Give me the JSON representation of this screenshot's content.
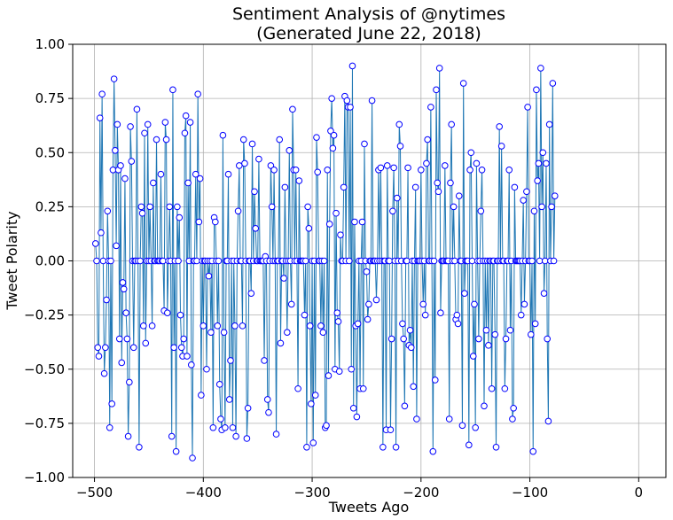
{
  "chart_data": {
    "type": "line",
    "title_lines": [
      "Sentiment Analysis of @nytimes",
      "(Generated June 22, 2018)"
    ],
    "xlabel": "Tweets Ago",
    "ylabel": "Tweet Polarity",
    "xlim": [
      -520,
      25
    ],
    "ylim": [
      -1.0,
      1.0
    ],
    "xticks": [
      -500,
      -400,
      -300,
      -200,
      -100,
      0
    ],
    "xtick_labels": [
      "−500",
      "−400",
      "−300",
      "−200",
      "−100",
      "0"
    ],
    "yticks": [
      -1.0,
      -0.75,
      -0.5,
      -0.25,
      0.0,
      0.25,
      0.5,
      0.75,
      1.0
    ],
    "ytick_labels": [
      "−1.00",
      "−0.75",
      "−0.50",
      "−0.25",
      "0.00",
      "0.25",
      "0.50",
      "0.75",
      "1.00"
    ],
    "grid": true,
    "line_color": "#1f77b4",
    "marker_edge_color": "#0000ff",
    "marker_face_color": "#ffffff",
    "x_start": -499,
    "x_step": 1,
    "values": [
      0.08,
      0.0,
      -0.4,
      -0.44,
      0.66,
      0.13,
      0.77,
      0.0,
      -0.52,
      -0.4,
      -0.18,
      0.23,
      0.0,
      -0.77,
      0.0,
      -0.66,
      0.42,
      0.84,
      0.51,
      0.07,
      0.63,
      0.42,
      -0.36,
      0.44,
      -0.47,
      -0.1,
      -0.13,
      0.38,
      -0.24,
      -0.36,
      -0.81,
      -0.56,
      0.62,
      0.46,
      0.0,
      -0.4,
      0.0,
      0.0,
      0.7,
      0.0,
      -0.86,
      0.0,
      0.25,
      0.22,
      -0.3,
      0.59,
      -0.38,
      0.0,
      0.63,
      0.0,
      0.25,
      0.0,
      -0.3,
      0.36,
      0.0,
      0.0,
      0.56,
      0.0,
      0.0,
      0.0,
      0.4,
      0.0,
      0.0,
      -0.23,
      0.64,
      0.56,
      -0.24,
      0.0,
      0.25,
      0.0,
      -0.81,
      0.79,
      -0.4,
      0.0,
      -0.88,
      0.25,
      0.0,
      0.2,
      -0.25,
      -0.4,
      -0.44,
      -0.36,
      0.59,
      0.67,
      -0.44,
      0.36,
      0.0,
      0.64,
      -0.48,
      -0.91,
      0.0,
      0.0,
      0.4,
      0.0,
      0.77,
      0.18,
      0.38,
      -0.62,
      0.0,
      -0.3,
      0.0,
      0.0,
      -0.5,
      0.0,
      -0.07,
      0.0,
      -0.33,
      0.0,
      -0.77,
      0.2,
      0.18,
      0.0,
      -0.3,
      0.0,
      -0.57,
      -0.73,
      -0.78,
      0.58,
      -0.33,
      -0.77,
      0.0,
      0.0,
      0.4,
      -0.64,
      -0.46,
      0.0,
      -0.77,
      0.0,
      -0.3,
      -0.81,
      0.0,
      0.23,
      0.44,
      0.0,
      0.0,
      -0.3,
      0.56,
      0.45,
      0.0,
      -0.82,
      -0.68,
      0.0,
      0.0,
      -0.15,
      0.54,
      0.0,
      0.32,
      0.15,
      0.0,
      0.0,
      0.47,
      0.0,
      0.0,
      0.0,
      0.0,
      -0.46,
      0.02,
      0.0,
      -0.64,
      -0.7,
      0.0,
      0.44,
      0.25,
      0.0,
      0.42,
      0.0,
      -0.8,
      0.0,
      0.0,
      0.56,
      -0.38,
      0.0,
      0.0,
      -0.08,
      0.34,
      0.0,
      -0.33,
      0.0,
      0.51,
      0.0,
      -0.2,
      0.7,
      0.42,
      0.0,
      0.42,
      0.0,
      -0.59,
      0.37,
      0.0,
      0.0,
      0.0,
      0.0,
      -0.25,
      0.0,
      -0.86,
      0.25,
      0.15,
      -0.3,
      -0.66,
      0.0,
      -0.84,
      0.0,
      -0.62,
      0.57,
      0.41,
      0.0,
      0.0,
      -0.3,
      0.0,
      -0.33,
      0.0,
      -0.77,
      -0.76,
      0.42,
      -0.53,
      0.17,
      0.6,
      0.75,
      0.52,
      0.58,
      -0.5,
      0.22,
      -0.24,
      -0.28,
      -0.51,
      0.12,
      0.0,
      0.0,
      0.34,
      0.76,
      0.0,
      0.74,
      0.71,
      0.0,
      0.71,
      -0.5,
      0.9,
      -0.68,
      0.18,
      -0.3,
      -0.72,
      -0.29,
      0.0,
      -0.59,
      0.0,
      0.18,
      -0.59,
      0.54,
      0.0,
      -0.05,
      -0.27,
      -0.2,
      0.0,
      0.0,
      0.74,
      0.0,
      0.0,
      0.0,
      -0.18,
      0.0,
      0.42,
      0.0,
      0.43,
      0.0,
      -0.86,
      0.0,
      0.0,
      -0.78,
      0.44,
      0.0,
      0.0,
      -0.78,
      -0.36,
      0.23,
      0.43,
      0.0,
      -0.86,
      0.29,
      0.0,
      0.63,
      0.53,
      0.0,
      -0.29,
      -0.36,
      -0.67,
      0.0,
      0.0,
      0.43,
      -0.39,
      -0.32,
      -0.4,
      0.0,
      -0.58,
      0.0,
      0.34,
      -0.73,
      0.0,
      0.0,
      0.0,
      0.42,
      0.0,
      -0.2,
      0.0,
      -0.25,
      0.45,
      0.56,
      0.0,
      0.0,
      0.71,
      0.0,
      -0.88,
      0.0,
      -0.55,
      0.79,
      0.36,
      0.32,
      0.89,
      -0.24,
      0.0,
      0.0,
      0.0,
      0.44,
      0.0,
      0.0,
      0.0,
      -0.73,
      0.36,
      0.63,
      0.0,
      0.25,
      0.0,
      -0.27,
      -0.25,
      -0.29,
      0.3,
      0.0,
      0.0,
      -0.76,
      0.82,
      -0.15,
      0.0,
      0.0,
      0.0,
      -0.85,
      0.42,
      0.5,
      0.0,
      -0.44,
      -0.2,
      -0.77,
      0.45,
      0.0,
      -0.36,
      0.0,
      0.23,
      0.42,
      0.0,
      -0.67,
      0.0,
      -0.32,
      0.0,
      -0.39,
      0.0,
      0.0,
      -0.59,
      0.0,
      0.0,
      -0.34,
      -0.86,
      0.0,
      0.0,
      0.62,
      0.0,
      0.53,
      0.0,
      0.0,
      -0.59,
      -0.36,
      0.0,
      0.0,
      0.42,
      -0.32,
      0.0,
      -0.73,
      -0.68,
      0.34,
      0.0,
      0.0,
      0.0,
      0.0,
      0.0,
      -0.25,
      0.0,
      0.28,
      -0.2,
      0.0,
      0.32,
      0.71,
      0.0,
      0.0,
      -0.34,
      0.0,
      -0.88,
      0.23,
      -0.29,
      0.79,
      0.37,
      0.45,
      0.0,
      0.89,
      0.25,
      0.5,
      -0.15,
      0.0,
      0.45,
      -0.36,
      -0.74,
      0.63,
      0.0,
      0.25,
      0.82,
      0.0,
      0.3
    ]
  }
}
